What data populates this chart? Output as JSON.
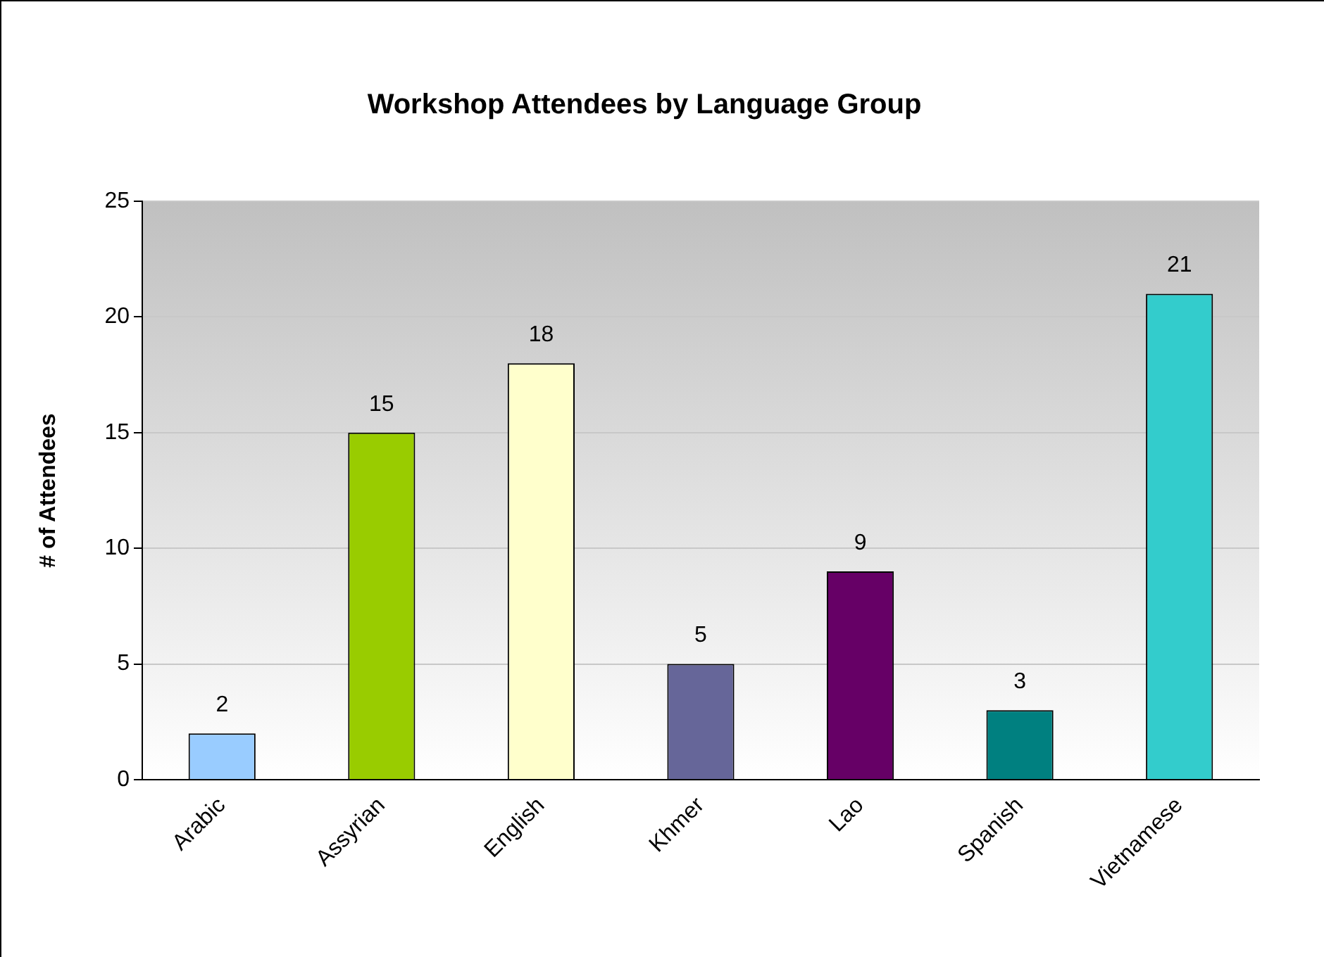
{
  "chart_data": {
    "type": "bar",
    "title": "Workshop Attendees by Language Group",
    "ylabel": "# of Attendees",
    "categories": [
      "Arabic",
      "Assyrian",
      "English",
      "Khmer",
      "Lao",
      "Spanish",
      "Vietnamese"
    ],
    "values": [
      2,
      15,
      18,
      5,
      9,
      3,
      21
    ],
    "colors": [
      "#99ccff",
      "#99cc00",
      "#ffffcc",
      "#666699",
      "#660066",
      "#008080",
      "#33cccc"
    ],
    "ylim": [
      0,
      25
    ],
    "yticks": [
      0,
      5,
      10,
      15,
      20,
      25
    ],
    "grid": "y",
    "data_labels": true,
    "legend": false
  }
}
